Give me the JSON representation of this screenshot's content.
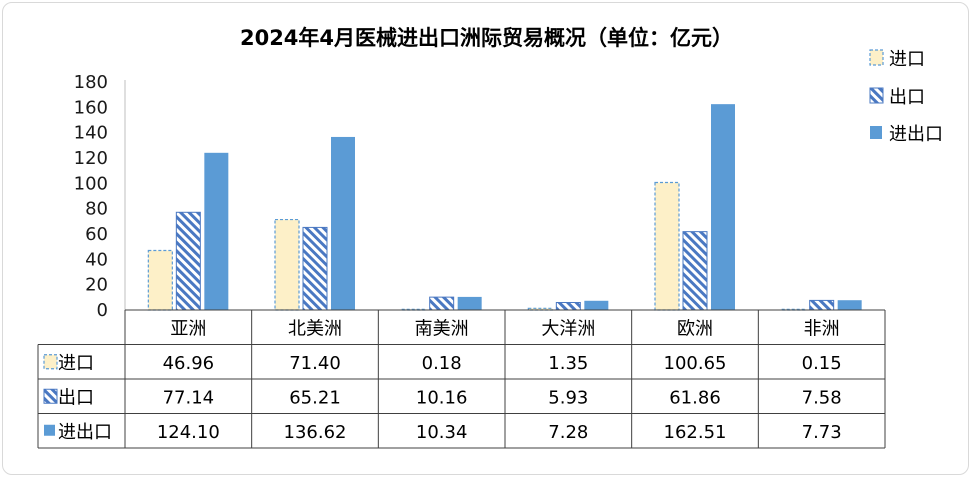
{
  "chart_data": {
    "type": "bar",
    "title": "2024年4月医械进出口洲际贸易概况（单位：亿元）",
    "xlabel": "",
    "ylabel": "",
    "ylim": [
      0,
      180
    ],
    "yticks": [
      0,
      20,
      40,
      60,
      80,
      100,
      120,
      140,
      160,
      180
    ],
    "categories": [
      "亚洲",
      "北美洲",
      "南美洲",
      "大洋洲",
      "欧洲",
      "非洲"
    ],
    "series": [
      {
        "name": "进口",
        "values": [
          46.96,
          71.4,
          0.18,
          1.35,
          100.65,
          0.15
        ],
        "labels": [
          "46.96",
          "71.40",
          "0.18",
          "1.35",
          "100.65",
          "0.15"
        ]
      },
      {
        "name": "出口",
        "values": [
          77.14,
          65.21,
          10.16,
          5.93,
          61.86,
          7.58
        ],
        "labels": [
          "77.14",
          "65.21",
          "10.16",
          "5.93",
          "61.86",
          "7.58"
        ]
      },
      {
        "name": "进出口",
        "values": [
          124.1,
          136.62,
          10.34,
          7.28,
          162.51,
          7.73
        ],
        "labels": [
          "124.10",
          "136.62",
          "10.34",
          "7.28",
          "162.51",
          "7.73"
        ]
      }
    ],
    "grid": false,
    "legend_position": "top-right",
    "data_table": true,
    "colors": {
      "import_fill": "#fdf0c8",
      "import_border": "#5b9bd5",
      "export_stripe": "#4a78c2",
      "export_bg": "#ffffff",
      "total_fill": "#5b9bd5",
      "axis": "#bfbfbf",
      "table_border": "#404040"
    }
  }
}
